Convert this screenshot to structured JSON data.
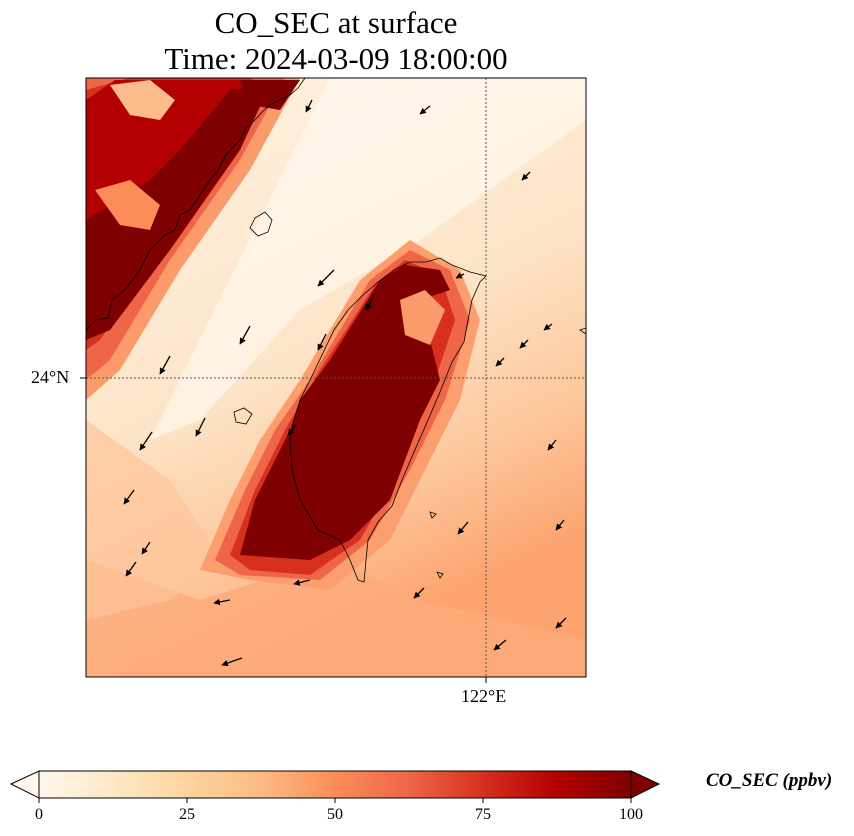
{
  "title": {
    "line1": "CO_SEC at surface",
    "line2": "Time: 2024-03-09 18:00:00"
  },
  "axes": {
    "lat_label": "24°N",
    "lon_label": "122°E"
  },
  "colorbar": {
    "label": "CO_SEC (ppbv)",
    "ticks": [
      "0",
      "25",
      "50",
      "75",
      "100"
    ],
    "tick_values": [
      0,
      25,
      50,
      75,
      100
    ],
    "min": 0,
    "max": 100,
    "colormap": "OrRd",
    "extend": "both"
  },
  "colors": {
    "low": "#fff5eb",
    "mid": "#fc8d59",
    "high": "#7f0000"
  }
}
